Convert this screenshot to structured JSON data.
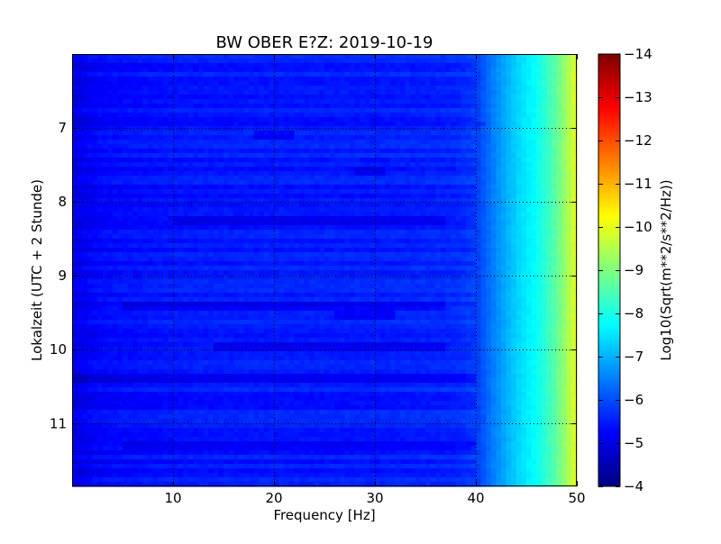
{
  "chart_data": {
    "type": "heatmap",
    "title": "BW OBER E?Z: 2019-10-19",
    "xlabel": "Frequency [Hz]",
    "ylabel": "Lokalzeit (UTC + 2 Stunde)",
    "colorbar_label": "Log10(Sqrt(m**2/s**2/Hz))",
    "xlim": [
      0,
      50
    ],
    "ylim": [
      6.0,
      11.85
    ],
    "y_inverted": true,
    "x_ticks": [
      10,
      20,
      30,
      40,
      50
    ],
    "y_ticks": [
      7,
      8,
      9,
      10,
      11
    ],
    "colorbar_range": [
      -14,
      -4
    ],
    "colorbar_ticks": [
      -4,
      -5,
      -6,
      -7,
      -8,
      -9,
      -10,
      -11,
      -12,
      -13,
      -14
    ],
    "colormap": "jet",
    "grid": true,
    "grid_style": "dotted",
    "frequency_profile": {
      "frequency_hz": [
        0,
        1,
        3,
        10,
        20,
        30,
        38,
        40,
        42,
        44,
        46,
        48,
        50
      ],
      "log10_amplitude": [
        -4.9,
        -5.1,
        -5.3,
        -5.45,
        -5.5,
        -5.5,
        -5.6,
        -5.8,
        -6.6,
        -7.3,
        -7.8,
        -8.7,
        -10.0
      ]
    },
    "strong_bands": [
      {
        "time": 6.95,
        "f_start": 0,
        "f_end": 41
      },
      {
        "time": 7.1,
        "f_start": 18,
        "f_end": 22
      },
      {
        "time": 7.6,
        "f_start": 28,
        "f_end": 31
      },
      {
        "time": 8.25,
        "f_start": 10,
        "f_end": 37
      },
      {
        "time": 9.4,
        "f_start": 5,
        "f_end": 37
      },
      {
        "time": 9.55,
        "f_start": 26,
        "f_end": 32
      },
      {
        "time": 9.95,
        "f_start": 14,
        "f_end": 37
      },
      {
        "time": 10.4,
        "f_start": 0,
        "f_end": 40
      },
      {
        "time": 11.3,
        "f_start": 5,
        "f_end": 40
      }
    ]
  }
}
